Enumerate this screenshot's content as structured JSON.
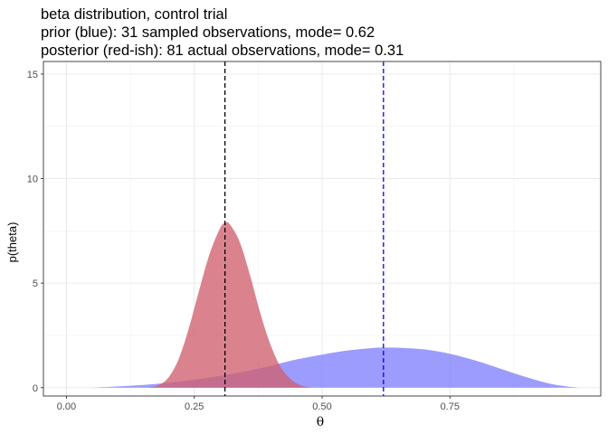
{
  "chart_data": {
    "type": "area",
    "title_lines": [
      "beta distribution, control trial",
      "prior (blue): 31 sampled observations, mode= 0.62",
      "posterior (red-ish): 81 actual observations, mode= 0.31"
    ],
    "xlabel": "θ",
    "ylabel": "p(theta)",
    "xlim": [
      -0.045,
      1.045
    ],
    "ylim": [
      -0.4,
      15.6
    ],
    "x_ticks": [
      0.0,
      0.25,
      0.5,
      0.75
    ],
    "x_tick_labels": [
      "0.00",
      "0.25",
      "0.50",
      "0.75"
    ],
    "y_ticks": [
      0,
      5,
      10,
      15
    ],
    "y_tick_labels": [
      "0",
      "5",
      "10",
      "15"
    ],
    "grid": true,
    "series": [
      {
        "name": "prior (blue)",
        "color": "#8080ff",
        "x": [
          0.05,
          0.1,
          0.15,
          0.2,
          0.25,
          0.3,
          0.35,
          0.4,
          0.45,
          0.5,
          0.55,
          0.6,
          0.62,
          0.65,
          0.7,
          0.75,
          0.8,
          0.85,
          0.9,
          0.95,
          1.0
        ],
        "y": [
          0.0,
          0.06,
          0.13,
          0.24,
          0.38,
          0.56,
          0.78,
          1.05,
          1.35,
          1.58,
          1.78,
          1.9,
          1.92,
          1.91,
          1.83,
          1.62,
          1.3,
          0.9,
          0.5,
          0.17,
          0.0
        ]
      },
      {
        "name": "posterior (red-ish)",
        "color": "#d06070",
        "x": [
          0.16,
          0.18,
          0.2,
          0.22,
          0.24,
          0.26,
          0.28,
          0.3,
          0.31,
          0.32,
          0.34,
          0.36,
          0.38,
          0.4,
          0.42,
          0.44,
          0.46,
          0.48
        ],
        "y": [
          0.0,
          0.12,
          0.5,
          1.4,
          2.9,
          4.7,
          6.4,
          7.6,
          7.88,
          7.8,
          6.9,
          5.3,
          3.5,
          2.0,
          0.95,
          0.38,
          0.1,
          0.0
        ]
      }
    ],
    "vlines": [
      {
        "x": 0.31,
        "color": "#000000",
        "style": "dashed"
      },
      {
        "x": 0.62,
        "color": "#0000ff",
        "style": "dashed"
      }
    ]
  }
}
